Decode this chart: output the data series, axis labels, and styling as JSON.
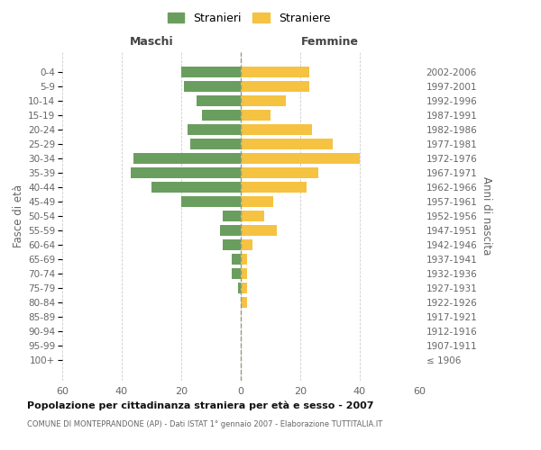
{
  "age_groups": [
    "0-4",
    "5-9",
    "10-14",
    "15-19",
    "20-24",
    "25-29",
    "30-34",
    "35-39",
    "40-44",
    "45-49",
    "50-54",
    "55-59",
    "60-64",
    "65-69",
    "70-74",
    "75-79",
    "80-84",
    "85-89",
    "90-94",
    "95-99",
    "100+"
  ],
  "birth_years": [
    "2002-2006",
    "1997-2001",
    "1992-1996",
    "1987-1991",
    "1982-1986",
    "1977-1981",
    "1972-1976",
    "1967-1971",
    "1962-1966",
    "1957-1961",
    "1952-1956",
    "1947-1951",
    "1942-1946",
    "1937-1941",
    "1932-1936",
    "1927-1931",
    "1922-1926",
    "1917-1921",
    "1912-1916",
    "1907-1911",
    "≤ 1906"
  ],
  "maschi": [
    20,
    19,
    15,
    13,
    18,
    17,
    36,
    37,
    30,
    20,
    6,
    7,
    6,
    3,
    3,
    1,
    0,
    0,
    0,
    0,
    0
  ],
  "femmine": [
    23,
    23,
    15,
    10,
    24,
    31,
    40,
    26,
    22,
    11,
    8,
    12,
    4,
    2,
    2,
    2,
    2,
    0,
    0,
    0,
    0
  ],
  "color_maschi": "#6a9e5e",
  "color_femmine": "#f5c242",
  "bg_color": "#ffffff",
  "grid_color": "#cccccc",
  "title": "Popolazione per cittadinanza straniera per età e sesso - 2007",
  "subtitle": "COMUNE DI MONTEPRANDONE (AP) - Dati ISTAT 1° gennaio 2007 - Elaborazione TUTTITALIA.IT",
  "ylabel_left": "Fasce di età",
  "ylabel_right": "Anni di nascita",
  "header_maschi": "Maschi",
  "header_femmine": "Femmine",
  "legend_maschi": "Stranieri",
  "legend_femmine": "Straniere",
  "xlim": 60
}
